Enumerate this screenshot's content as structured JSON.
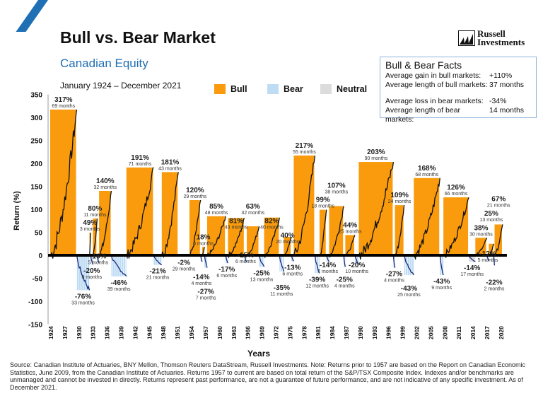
{
  "header": {
    "title": "Bull vs. Bear Market",
    "subtitle": "Canadian Equity",
    "period": "January 1924 – December 2021",
    "logo_line1": "Russell",
    "logo_line2": "Investments"
  },
  "legend": {
    "bull": "Bull",
    "bear": "Bear",
    "neutral": "Neutral"
  },
  "facts": {
    "title": "Bull & Bear Facts",
    "rows": [
      {
        "k": "Average gain in bull markets:",
        "v": "+110%"
      },
      {
        "k": "Average length of bull markets:",
        "v": "37 months"
      },
      {
        "k": "Average loss in bear markets:",
        "v": "-34%"
      },
      {
        "k": "Average length of bear markets:",
        "v": "14 months"
      }
    ]
  },
  "source": "Source: Canadian Institute of Actuaries, BNY Mellon, Thomson Reuters DataStream, Russell Investments. Note: Returns prior to 1957 are based on the Report on Canadian Economic Statistics, June 2009, from the Canadian Institute of Actuaries. Returns 1957 to current are based on total return of the S&P/TSX Composite Index. Indexes and/or benchmarks are unmanaged and cannot be invested in directly. Returns represent past performance, are not a guarantee of future performance, and are not indicative of any specific investment. As of December 2021.",
  "colors": {
    "bull": "#f99b0c",
    "bear": "#bfdcf5",
    "neutral": "#dcdcdc",
    "accent": "#1f6fb5"
  },
  "chart_data": {
    "type": "bar",
    "xlabel": "Years",
    "ylabel": "Return (%)",
    "ylim": [
      -150,
      350
    ],
    "yticks": [
      350,
      300,
      250,
      200,
      150,
      100,
      50,
      0,
      -50,
      -100,
      -150
    ],
    "xticks": [
      "1924",
      "1927",
      "1930",
      "1933",
      "1936",
      "1939",
      "1942",
      "1945",
      "1948",
      "1951",
      "1954",
      "1957",
      "1960",
      "1963",
      "1966",
      "1969",
      "1972",
      "1975",
      "1978",
      "1981",
      "1984",
      "1987",
      "1990",
      "1993",
      "1996",
      "1999",
      "2002",
      "2005",
      "2008",
      "2011",
      "2014",
      "2017",
      "2020"
    ],
    "grid": false,
    "legend_position": "top",
    "segments": [
      {
        "type": "bull",
        "value": 317,
        "months": 69,
        "label": "317%",
        "months_label": "69 months"
      },
      {
        "type": "bear",
        "value": -76,
        "months": 33,
        "label": "-76%",
        "months_label": "33 months"
      },
      {
        "type": "bull",
        "value": 49,
        "months": 3,
        "label": "49%",
        "months_label": "3 months"
      },
      {
        "type": "bear",
        "value": -20,
        "months": 6,
        "label": "-20%",
        "months_label": "6 months"
      },
      {
        "type": "bull",
        "value": 80,
        "months": 11,
        "label": "80%",
        "months_label": "11 months"
      },
      {
        "type": "bear",
        "value": -16,
        "months": 5,
        "label": "-16%",
        "months_label": "5 months"
      },
      {
        "type": "bull",
        "value": 140,
        "months": 32,
        "label": "140%",
        "months_label": "32 months"
      },
      {
        "type": "bear",
        "value": -46,
        "months": 39,
        "label": "-46%",
        "months_label": "39 months"
      },
      {
        "type": "bull",
        "value": 191,
        "months": 71,
        "label": "191%",
        "months_label": "71 months"
      },
      {
        "type": "bear",
        "value": -21,
        "months": 21,
        "label": "-21%",
        "months_label": "21 months"
      },
      {
        "type": "bull",
        "value": 181,
        "months": 43,
        "label": "181%",
        "months_label": "43 months"
      },
      {
        "type": "neutral",
        "value": -2,
        "months": 29,
        "label": "-2%",
        "months_label": "29 months"
      },
      {
        "type": "bull",
        "value": 120,
        "months": 29,
        "label": "120%",
        "months_label": "29 months"
      },
      {
        "type": "bear",
        "value": -14,
        "months": 4,
        "label": "-14%",
        "months_label": "4 months"
      },
      {
        "type": "bull",
        "value": 18,
        "months": 6,
        "label": "18%",
        "months_label": "6 months"
      },
      {
        "type": "bear",
        "value": -27,
        "months": 7,
        "label": "-27%",
        "months_label": "7 months"
      },
      {
        "type": "bull",
        "value": 85,
        "months": 48,
        "label": "85%",
        "months_label": "48 months"
      },
      {
        "type": "bear",
        "value": -17,
        "months": 6,
        "label": "-17%",
        "months_label": "6 months"
      },
      {
        "type": "bull",
        "value": 81,
        "months": 43,
        "label": "81%",
        "months_label": "43 months"
      },
      {
        "type": "bear",
        "value": -15,
        "months": 6,
        "label": "-15%",
        "months_label": "6 months"
      },
      {
        "type": "bull",
        "value": 63,
        "months": 32,
        "label": "63%",
        "months_label": "32 months"
      },
      {
        "type": "bear",
        "value": -25,
        "months": 13,
        "label": "-25%",
        "months_label": "13 months"
      },
      {
        "type": "bull",
        "value": 82,
        "months": 40,
        "label": "82%",
        "months_label": "40 months"
      },
      {
        "type": "bear",
        "value": -35,
        "months": 11,
        "label": "-35%",
        "months_label": "11 months"
      },
      {
        "type": "bull",
        "value": 40,
        "months": 20,
        "label": "40%",
        "months_label": "20 months"
      },
      {
        "type": "bear",
        "value": -13,
        "months": 6,
        "label": "-13%",
        "months_label": "6 months"
      },
      {
        "type": "bull",
        "value": 217,
        "months": 55,
        "label": "217%",
        "months_label": "55 months"
      },
      {
        "type": "bear",
        "value": -39,
        "months": 12,
        "label": "-39%",
        "months_label": "12 months"
      },
      {
        "type": "bull",
        "value": 99,
        "months": 18,
        "label": "99%",
        "months_label": "18 months"
      },
      {
        "type": "bear",
        "value": -14,
        "months": 7,
        "label": "-14%",
        "months_label": "7 months"
      },
      {
        "type": "bull",
        "value": 107,
        "months": 38,
        "label": "107%",
        "months_label": "38 months"
      },
      {
        "type": "bear",
        "value": -25,
        "months": 4,
        "label": "-25%",
        "months_label": "4 months"
      },
      {
        "type": "bull",
        "value": 44,
        "months": 25,
        "label": "44%",
        "months_label": "25 months"
      },
      {
        "type": "bear",
        "value": -20,
        "months": 10,
        "label": "-20%",
        "months_label": "10 months"
      },
      {
        "type": "bull",
        "value": 203,
        "months": 90,
        "label": "203%",
        "months_label": "90 months"
      },
      {
        "type": "bear",
        "value": -27,
        "months": 4,
        "label": "-27%",
        "months_label": "4 months"
      },
      {
        "type": "bull",
        "value": 109,
        "months": 24,
        "label": "109%",
        "months_label": "24 months"
      },
      {
        "type": "bear",
        "value": -43,
        "months": 25,
        "label": "-43%",
        "months_label": "25 months"
      },
      {
        "type": "bull",
        "value": 168,
        "months": 68,
        "label": "168%",
        "months_label": "68 months"
      },
      {
        "type": "bear",
        "value": -43,
        "months": 9,
        "label": "-43%",
        "months_label": "9 months"
      },
      {
        "type": "bull",
        "value": 126,
        "months": 66,
        "label": "126%",
        "months_label": "66 months"
      },
      {
        "type": "neutral",
        "value": -14,
        "months": 17,
        "label": "-14%",
        "months_label": "17 months"
      },
      {
        "type": "bull",
        "value": 38,
        "months": 30,
        "label": "38%",
        "months_label": "30 months"
      },
      {
        "type": "bear",
        "value": -12,
        "months": 5,
        "label": "-12%",
        "months_label": "5 months"
      },
      {
        "type": "bull",
        "value": 25,
        "months": 13,
        "label": "25%",
        "months_label": "13 months"
      },
      {
        "type": "bear",
        "value": -22,
        "months": 2,
        "label": "-22%",
        "months_label": "2 months"
      },
      {
        "type": "bull",
        "value": 67,
        "months": 21,
        "label": "67%",
        "months_label": "21 months"
      }
    ]
  }
}
